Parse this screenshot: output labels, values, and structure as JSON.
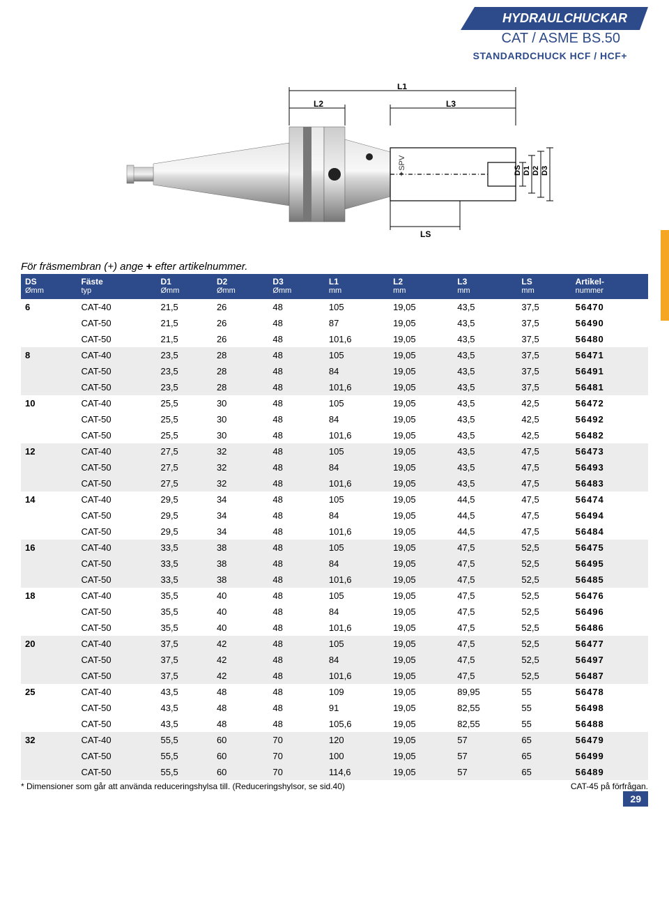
{
  "colors": {
    "brand_blue": "#2d4a8a",
    "row_alt": "#ececec",
    "orange_tab": "#f5a623"
  },
  "header": {
    "title": "HYDRAULCHUCKAR",
    "subtitle": "CAT / ASME BS.50",
    "subtitle2": "STANDARDCHUCK HCF / HCF+"
  },
  "diagram": {
    "labels": {
      "L1": "L1",
      "L2": "L2",
      "L3": "L3",
      "LS": "LS",
      "DS": "DS",
      "D1": "D1",
      "D2": "D2",
      "D3": "D3"
    }
  },
  "intro": {
    "prefix": "För fräsmembran (+) ange ",
    "plus": "+",
    "suffix": " efter artikelnummer."
  },
  "table": {
    "columns": [
      {
        "h1": "DS",
        "h2": "Ømm"
      },
      {
        "h1": "Fäste",
        "h2": "typ"
      },
      {
        "h1": "D1",
        "h2": "Ømm"
      },
      {
        "h1": "D2",
        "h2": "Ømm"
      },
      {
        "h1": "D3",
        "h2": "Ømm"
      },
      {
        "h1": "L1",
        "h2": "mm"
      },
      {
        "h1": "L2",
        "h2": "mm"
      },
      {
        "h1": "L3",
        "h2": "mm"
      },
      {
        "h1": "LS",
        "h2": "mm"
      },
      {
        "h1": "Artikel-",
        "h2": "nummer"
      }
    ],
    "rows": [
      {
        "ds": "6",
        "mount": "CAT-40",
        "d1": "21,5",
        "d2": "26",
        "d3": "48",
        "l1": "105",
        "l2": "19,05",
        "l3": "43,5",
        "ls": "37,5",
        "art": "56470"
      },
      {
        "ds": "",
        "mount": "CAT-50",
        "d1": "21,5",
        "d2": "26",
        "d3": "48",
        "l1": "87",
        "l2": "19,05",
        "l3": "43,5",
        "ls": "37,5",
        "art": "56490"
      },
      {
        "ds": "",
        "mount": "CAT-50",
        "d1": "21,5",
        "d2": "26",
        "d3": "48",
        "l1": "101,6",
        "l2": "19,05",
        "l3": "43,5",
        "ls": "37,5",
        "art": "56480"
      },
      {
        "ds": "8",
        "mount": "CAT-40",
        "d1": "23,5",
        "d2": "28",
        "d3": "48",
        "l1": "105",
        "l2": "19,05",
        "l3": "43,5",
        "ls": "37,5",
        "art": "56471"
      },
      {
        "ds": "",
        "mount": "CAT-50",
        "d1": "23,5",
        "d2": "28",
        "d3": "48",
        "l1": "84",
        "l2": "19,05",
        "l3": "43,5",
        "ls": "37,5",
        "art": "56491"
      },
      {
        "ds": "",
        "mount": "CAT-50",
        "d1": "23,5",
        "d2": "28",
        "d3": "48",
        "l1": "101,6",
        "l2": "19,05",
        "l3": "43,5",
        "ls": "37,5",
        "art": "56481"
      },
      {
        "ds": "10",
        "mount": "CAT-40",
        "d1": "25,5",
        "d2": "30",
        "d3": "48",
        "l1": "105",
        "l2": "19,05",
        "l3": "43,5",
        "ls": "42,5",
        "art": "56472"
      },
      {
        "ds": "",
        "mount": "CAT-50",
        "d1": "25,5",
        "d2": "30",
        "d3": "48",
        "l1": "84",
        "l2": "19,05",
        "l3": "43,5",
        "ls": "42,5",
        "art": "56492"
      },
      {
        "ds": "",
        "mount": "CAT-50",
        "d1": "25,5",
        "d2": "30",
        "d3": "48",
        "l1": "101,6",
        "l2": "19,05",
        "l3": "43,5",
        "ls": "42,5",
        "art": "56482"
      },
      {
        "ds": "12",
        "mount": "CAT-40",
        "d1": "27,5",
        "d2": "32",
        "d3": "48",
        "l1": "105",
        "l2": "19,05",
        "l3": "43,5",
        "ls": "47,5",
        "art": "56473"
      },
      {
        "ds": "",
        "mount": "CAT-50",
        "d1": "27,5",
        "d2": "32",
        "d3": "48",
        "l1": "84",
        "l2": "19,05",
        "l3": "43,5",
        "ls": "47,5",
        "art": "56493"
      },
      {
        "ds": "",
        "mount": "CAT-50",
        "d1": "27,5",
        "d2": "32",
        "d3": "48",
        "l1": "101,6",
        "l2": "19,05",
        "l3": "43,5",
        "ls": "47,5",
        "art": "56483"
      },
      {
        "ds": "14",
        "mount": "CAT-40",
        "d1": "29,5",
        "d2": "34",
        "d3": "48",
        "l1": "105",
        "l2": "19,05",
        "l3": "44,5",
        "ls": "47,5",
        "art": "56474"
      },
      {
        "ds": "",
        "mount": "CAT-50",
        "d1": "29,5",
        "d2": "34",
        "d3": "48",
        "l1": "84",
        "l2": "19,05",
        "l3": "44,5",
        "ls": "47,5",
        "art": "56494"
      },
      {
        "ds": "",
        "mount": "CAT-50",
        "d1": "29,5",
        "d2": "34",
        "d3": "48",
        "l1": "101,6",
        "l2": "19,05",
        "l3": "44,5",
        "ls": "47,5",
        "art": "56484"
      },
      {
        "ds": "16",
        "mount": "CAT-40",
        "d1": "33,5",
        "d2": "38",
        "d3": "48",
        "l1": "105",
        "l2": "19,05",
        "l3": "47,5",
        "ls": "52,5",
        "art": "56475"
      },
      {
        "ds": "",
        "mount": "CAT-50",
        "d1": "33,5",
        "d2": "38",
        "d3": "48",
        "l1": "84",
        "l2": "19,05",
        "l3": "47,5",
        "ls": "52,5",
        "art": "56495"
      },
      {
        "ds": "",
        "mount": "CAT-50",
        "d1": "33,5",
        "d2": "38",
        "d3": "48",
        "l1": "101,6",
        "l2": "19,05",
        "l3": "47,5",
        "ls": "52,5",
        "art": "56485"
      },
      {
        "ds": "18",
        "mount": "CAT-40",
        "d1": "35,5",
        "d2": "40",
        "d3": "48",
        "l1": "105",
        "l2": "19,05",
        "l3": "47,5",
        "ls": "52,5",
        "art": "56476"
      },
      {
        "ds": "",
        "mount": "CAT-50",
        "d1": "35,5",
        "d2": "40",
        "d3": "48",
        "l1": "84",
        "l2": "19,05",
        "l3": "47,5",
        "ls": "52,5",
        "art": "56496"
      },
      {
        "ds": "",
        "mount": "CAT-50",
        "d1": "35,5",
        "d2": "40",
        "d3": "48",
        "l1": "101,6",
        "l2": "19,05",
        "l3": "47,5",
        "ls": "52,5",
        "art": "56486"
      },
      {
        "ds": "20",
        "mount": "CAT-40",
        "d1": "37,5",
        "d2": "42",
        "d3": "48",
        "l1": "105",
        "l2": "19,05",
        "l3": "47,5",
        "ls": "52,5",
        "art": "56477"
      },
      {
        "ds": "",
        "mount": "CAT-50",
        "d1": "37,5",
        "d2": "42",
        "d3": "48",
        "l1": "84",
        "l2": "19,05",
        "l3": "47,5",
        "ls": "52,5",
        "art": "56497"
      },
      {
        "ds": "",
        "mount": "CAT-50",
        "d1": "37,5",
        "d2": "42",
        "d3": "48",
        "l1": "101,6",
        "l2": "19,05",
        "l3": "47,5",
        "ls": "52,5",
        "art": "56487"
      },
      {
        "ds": "25",
        "mount": "CAT-40",
        "d1": "43,5",
        "d2": "48",
        "d3": "48",
        "l1": "109",
        "l2": "19,05",
        "l3": "89,95",
        "ls": "55",
        "art": "56478"
      },
      {
        "ds": "",
        "mount": "CAT-50",
        "d1": "43,5",
        "d2": "48",
        "d3": "48",
        "l1": "91",
        "l2": "19,05",
        "l3": "82,55",
        "ls": "55",
        "art": "56498"
      },
      {
        "ds": "",
        "mount": "CAT-50",
        "d1": "43,5",
        "d2": "48",
        "d3": "48",
        "l1": "105,6",
        "l2": "19,05",
        "l3": "82,55",
        "ls": "55",
        "art": "56488"
      },
      {
        "ds": "32",
        "mount": "CAT-40",
        "d1": "55,5",
        "d2": "60",
        "d3": "70",
        "l1": "120",
        "l2": "19,05",
        "l3": "57",
        "ls": "65",
        "art": "56479"
      },
      {
        "ds": "",
        "mount": "CAT-50",
        "d1": "55,5",
        "d2": "60",
        "d3": "70",
        "l1": "100",
        "l2": "19,05",
        "l3": "57",
        "ls": "65",
        "art": "56499"
      },
      {
        "ds": "",
        "mount": "CAT-50",
        "d1": "55,5",
        "d2": "60",
        "d3": "70",
        "l1": "114,6",
        "l2": "19,05",
        "l3": "57",
        "ls": "65",
        "art": "56489"
      }
    ]
  },
  "footer": {
    "left": "* Dimensioner som går att använda reduceringshylsa till. (Reduceringshylsor, se sid.40)",
    "right": "CAT-45 på förfrågan."
  },
  "page_number": "29"
}
